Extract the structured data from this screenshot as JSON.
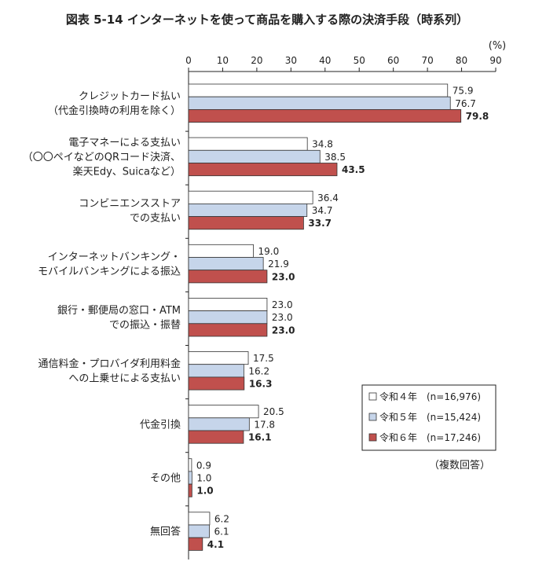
{
  "chart_data": {
    "type": "bar",
    "orientation": "horizontal",
    "title": "図表 5-14 インターネットを使って商品を購入する際の決済手段（時系列）",
    "unit_label": "(%)",
    "xlim": [
      0,
      90
    ],
    "x_ticks": [
      "0",
      "10",
      "20",
      "30",
      "40",
      "50",
      "60",
      "70",
      "80",
      "90"
    ],
    "categories": [
      [
        "クレジットカード払い",
        "（代金引換時の利用を除く）"
      ],
      [
        "電子マネーによる支払い",
        "（〇〇ペイなどのQRコード決済、",
        "楽天Edy、Suicaなど）"
      ],
      [
        "コンビニエンスストア",
        "での支払い"
      ],
      [
        "インターネットバンキング・",
        "モバイルバンキングによる振込"
      ],
      [
        "銀行・郵便局の窓口・ATM",
        "での振込・振替"
      ],
      [
        "通信料金・プロバイダ利用料金",
        "への上乗せによる支払い"
      ],
      [
        "代金引換"
      ],
      [
        "その他"
      ],
      [
        "無回答"
      ]
    ],
    "series": [
      {
        "name": "令和４年",
        "n_label": "(n=16,976)",
        "color": "#ffffff",
        "values": [
          75.9,
          34.8,
          36.4,
          19.0,
          23.0,
          17.5,
          20.5,
          0.9,
          6.2
        ]
      },
      {
        "name": "令和５年",
        "n_label": "(n=15,424)",
        "color": "#c6d5ea",
        "values": [
          76.7,
          38.5,
          34.7,
          21.9,
          23.0,
          16.2,
          17.8,
          1.0,
          6.1
        ]
      },
      {
        "name": "令和６年",
        "n_label": "(n=17,246)",
        "color": "#c0504d",
        "values": [
          79.8,
          43.5,
          33.7,
          23.0,
          23.0,
          16.3,
          16.1,
          1.0,
          4.1
        ]
      }
    ],
    "legend_position": "right",
    "note": "（複数回答）"
  }
}
